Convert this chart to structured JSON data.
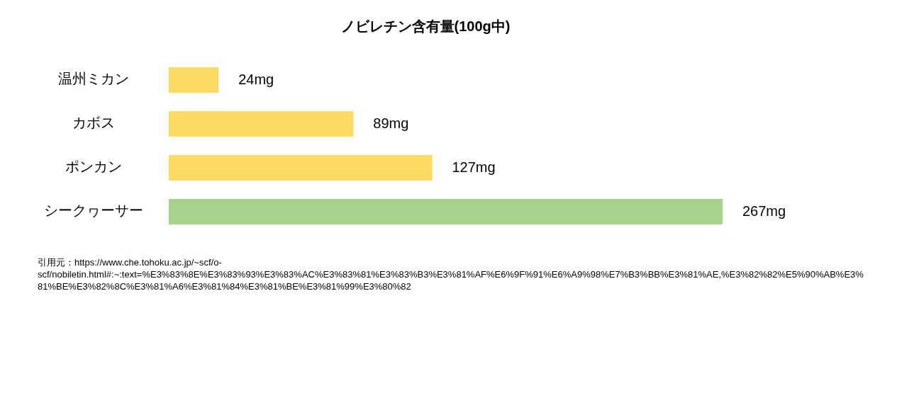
{
  "chart_data": {
    "type": "bar",
    "orientation": "horizontal",
    "title": "ノビレチン含有量(100g中)",
    "categories": [
      "温州ミカン",
      "カボス",
      "ポンカン",
      "シークヮーサー"
    ],
    "values": [
      24,
      89,
      127,
      267
    ],
    "colors": [
      "#ffd966",
      "#ffd966",
      "#ffd966",
      "#a9d18e"
    ],
    "value_labels": [
      "24mg",
      "89mg",
      "127mg",
      "267mg"
    ],
    "annotations": [
      "引用元：https://www.che.tohoku.ac.jp/~scf/o-scf/nobiletin.html#:~:text=%E3%83%8E%E3%83%93%E3%83%AC%E3%83%81%E3%83%B3%E3%81%AF%E6%9F%91%E6%A9%98%E7%B3%BB%E3%81%AE,%E3%82%82%E5%90%AB%E3%81%BE%E3%82%8C%E3%81%A6%E3%81%84%E3%81%BE%E3%81%99%E3%80%82"
    ]
  }
}
